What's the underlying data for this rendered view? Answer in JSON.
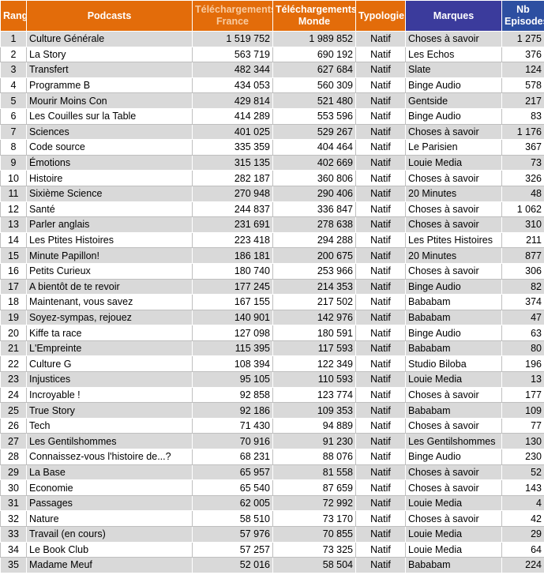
{
  "table": {
    "header": [
      "Rang",
      "Podcasts",
      "Téléchargements France",
      "Téléchargements Monde",
      "Typologie",
      "Marques",
      "Nb Episodes"
    ],
    "rows": [
      [
        "1",
        "Culture Générale",
        "1 519 752",
        "1 989 852",
        "Natif",
        "Choses à savoir",
        "1 275"
      ],
      [
        "2",
        "La Story",
        "563 719",
        "690 192",
        "Natif",
        "Les Echos",
        "376"
      ],
      [
        "3",
        "Transfert",
        "482 344",
        "627 684",
        "Natif",
        "Slate",
        "124"
      ],
      [
        "4",
        "Programme B",
        "434 053",
        "560 309",
        "Natif",
        "Binge Audio",
        "578"
      ],
      [
        "5",
        "Mourir Moins Con",
        "429 814",
        "521 480",
        "Natif",
        "Gentside",
        "217"
      ],
      [
        "6",
        "Les Couilles sur la Table",
        "414 289",
        "553 596",
        "Natif",
        "Binge Audio",
        "83"
      ],
      [
        "7",
        "Sciences",
        "401 025",
        "529 267",
        "Natif",
        "Choses à savoir",
        "1 176"
      ],
      [
        "8",
        "Code source",
        "335 359",
        "404 464",
        "Natif",
        "Le Parisien",
        "367"
      ],
      [
        "9",
        "Émotions",
        "315 135",
        "402 669",
        "Natif",
        "Louie Media",
        "73"
      ],
      [
        "10",
        "Histoire",
        "282 187",
        "360 806",
        "Natif",
        "Choses à savoir",
        "326"
      ],
      [
        "11",
        "Sixième Science",
        "270 948",
        "290 406",
        "Natif",
        "20 Minutes",
        "48"
      ],
      [
        "12",
        "Santé",
        "244 837",
        "336 847",
        "Natif",
        "Choses à savoir",
        "1 062"
      ],
      [
        "13",
        "Parler anglais",
        "231 691",
        "278 638",
        "Natif",
        "Choses à savoir",
        "310"
      ],
      [
        "14",
        "Les Ptites Histoires",
        "223 418",
        "294 288",
        "Natif",
        "Les Ptites Histoires",
        "211"
      ],
      [
        "15",
        "Minute Papillon!",
        "186 181",
        "200 675",
        "Natif",
        "20 Minutes",
        "877"
      ],
      [
        "16",
        "Petits Curieux",
        "180 740",
        "253 966",
        "Natif",
        "Choses à savoir",
        "306"
      ],
      [
        "17",
        "A bientôt de te revoir",
        "177 245",
        "214 353",
        "Natif",
        "Binge Audio",
        "82"
      ],
      [
        "18",
        "Maintenant, vous savez",
        "167 155",
        "217 502",
        "Natif",
        "Bababam",
        "374"
      ],
      [
        "19",
        "Soyez-sympas, rejouez",
        "140 901",
        "142 976",
        "Natif",
        "Bababam",
        "47"
      ],
      [
        "20",
        "Kiffe ta race",
        "127 098",
        "180 591",
        "Natif",
        "Binge Audio",
        "63"
      ],
      [
        "21",
        "L'Empreinte",
        "115 395",
        "117 593",
        "Natif",
        "Bababam",
        "80"
      ],
      [
        "22",
        "Culture G",
        "108 394",
        "122 349",
        "Natif",
        "Studio Biloba",
        "196"
      ],
      [
        "23",
        "Injustices",
        "95 105",
        "110 593",
        "Natif",
        "Louie Media",
        "13"
      ],
      [
        "24",
        "Incroyable !",
        "92 858",
        "123 774",
        "Natif",
        "Choses à savoir",
        "177"
      ],
      [
        "25",
        "True Story",
        "92 186",
        "109 353",
        "Natif",
        "Bababam",
        "109"
      ],
      [
        "26",
        "Tech",
        "71 430",
        "94 889",
        "Natif",
        "Choses à savoir",
        "77"
      ],
      [
        "27",
        "Les Gentilshommes",
        "70 916",
        "91 230",
        "Natif",
        "Les Gentilshommes",
        "130"
      ],
      [
        "28",
        "Connaissez-vous l'histoire de...?",
        "68 231",
        "88 076",
        "Natif",
        "Binge Audio",
        "230"
      ],
      [
        "29",
        "La Base",
        "65 957",
        "81 558",
        "Natif",
        "Choses à savoir",
        "52"
      ],
      [
        "30",
        "Economie",
        "65 540",
        "87 659",
        "Natif",
        "Choses à savoir",
        "143"
      ],
      [
        "31",
        "Passages",
        "62 005",
        "72 992",
        "Natif",
        "Louie Media",
        "4"
      ],
      [
        "32",
        "Nature",
        "58 510",
        "73 170",
        "Natif",
        "Choses à savoir",
        "42"
      ],
      [
        "33",
        "Travail (en cours)",
        "57 976",
        "70 855",
        "Natif",
        "Louie Media",
        "29"
      ],
      [
        "34",
        "Le Book Club",
        "57 257",
        "73 325",
        "Natif",
        "Louie Media",
        "64"
      ],
      [
        "35",
        "Madame Meuf",
        "52 016",
        "58 504",
        "Natif",
        "Bababam",
        "224"
      ]
    ]
  }
}
